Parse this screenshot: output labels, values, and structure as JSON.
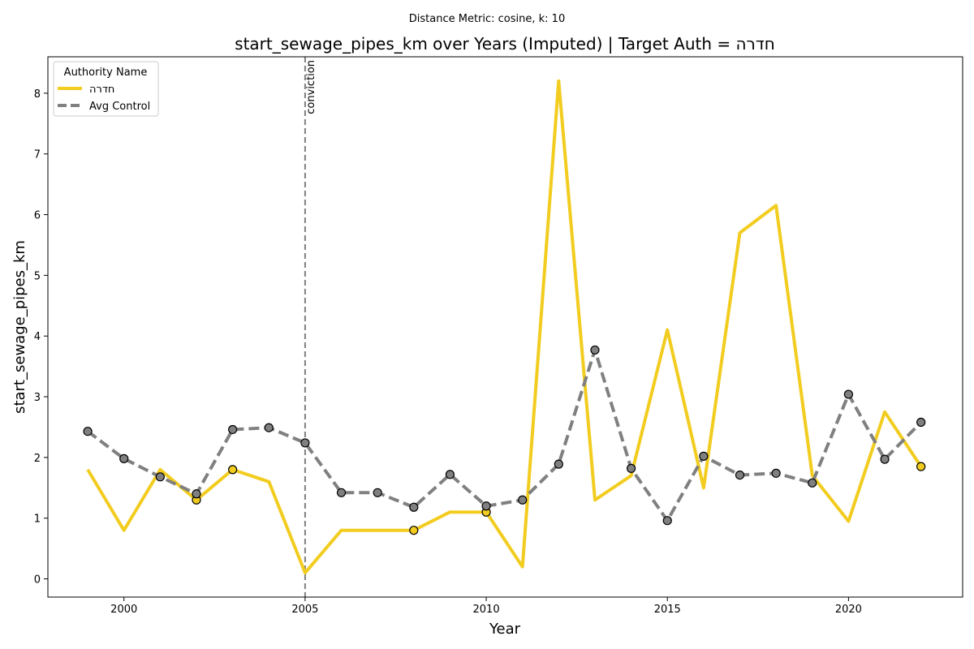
{
  "colors": {
    "target": "#f2cc1f",
    "control": "#808080",
    "marker_edge": "#000000",
    "vline": "#808080"
  },
  "chart_data": {
    "type": "line",
    "suptitle": "Distance Metric: cosine, k: 10",
    "title": "start_sewage_pipes_km over Years (Imputed) | Target Auth = חדרה",
    "xlabel": "Year",
    "ylabel": "start_sewage_pipes_km",
    "xlim": [
      1997.9,
      2023.15
    ],
    "ylim": [
      -0.3,
      8.6
    ],
    "xticks": [
      2000,
      2005,
      2010,
      2015,
      2020
    ],
    "yticks": [
      0,
      1,
      2,
      3,
      4,
      5,
      6,
      7,
      8
    ],
    "grid": false,
    "legend": {
      "title": "Authority Name",
      "placement": "top-left",
      "entries": [
        "חדרה",
        "Avg Control"
      ]
    },
    "annotations": [
      {
        "x": 2005,
        "text": "conviction",
        "style": "dashed vertical line"
      }
    ],
    "series": [
      {
        "name": "חדרה",
        "style": "solid",
        "x": [
          1999,
          2000,
          2001,
          2002,
          2003,
          2004,
          2005,
          2006,
          2007,
          2008,
          2009,
          2010,
          2011,
          2012,
          2013,
          2014,
          2015,
          2016,
          2017,
          2018,
          2019,
          2020,
          2021,
          2022
        ],
        "values": [
          1.8,
          0.8,
          1.8,
          1.3,
          1.8,
          1.6,
          0.1,
          0.8,
          0.8,
          0.8,
          1.1,
          1.1,
          0.2,
          8.2,
          1.3,
          1.7,
          4.1,
          1.5,
          5.7,
          6.15,
          1.7,
          0.95,
          2.75,
          1.85
        ],
        "marker_x": [
          2002,
          2003,
          2008,
          2010,
          2022
        ]
      },
      {
        "name": "Avg Control",
        "style": "dashed",
        "x": [
          1999,
          2000,
          2001,
          2002,
          2003,
          2004,
          2005,
          2006,
          2007,
          2008,
          2009,
          2010,
          2011,
          2012,
          2013,
          2014,
          2015,
          2016,
          2017,
          2018,
          2019,
          2020,
          2021,
          2022
        ],
        "values": [
          2.43,
          1.98,
          1.68,
          1.4,
          2.46,
          2.49,
          2.24,
          1.42,
          1.42,
          1.18,
          1.72,
          1.2,
          1.3,
          1.89,
          3.77,
          1.82,
          0.96,
          2.02,
          1.71,
          1.74,
          1.58,
          3.04,
          1.97,
          2.58
        ],
        "marker_x": [
          1999,
          2000,
          2001,
          2002,
          2003,
          2004,
          2005,
          2006,
          2007,
          2008,
          2009,
          2010,
          2011,
          2012,
          2013,
          2014,
          2015,
          2016,
          2017,
          2018,
          2019,
          2020,
          2021,
          2022
        ]
      }
    ]
  }
}
